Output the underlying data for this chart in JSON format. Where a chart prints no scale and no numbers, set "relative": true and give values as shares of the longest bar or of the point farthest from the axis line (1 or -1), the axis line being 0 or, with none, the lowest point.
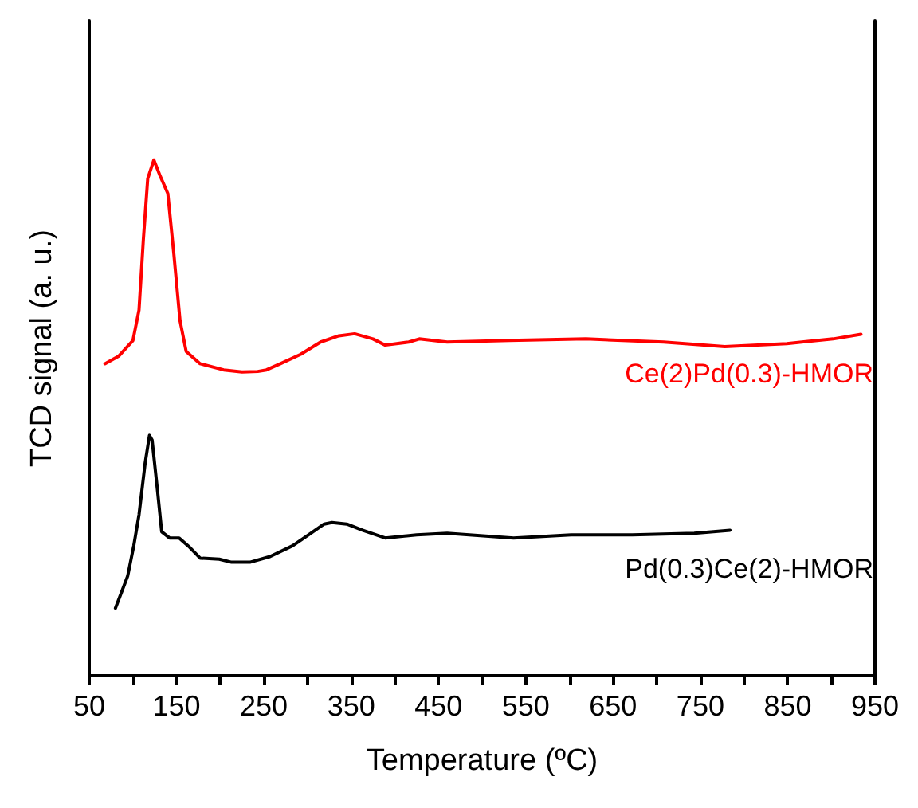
{
  "chart_data": {
    "type": "line",
    "xlabel": "Temperature (ºC)",
    "ylabel": "TCD signal (a. u.)",
    "relative": true,
    "xlim": [
      50,
      950
    ],
    "xticks": [
      50,
      {
        "value": 100,
        "label": null
      },
      150,
      {
        "value": 200,
        "label": null
      },
      250,
      {
        "value": 300,
        "label": null
      },
      350,
      {
        "value": 400,
        "label": null
      },
      450,
      {
        "value": 500,
        "label": null
      },
      550,
      {
        "value": 600,
        "label": null
      },
      650,
      {
        "value": 700,
        "label": null
      },
      750,
      {
        "value": 800,
        "label": null
      },
      850,
      {
        "value": 900,
        "label": null
      },
      950
    ],
    "grid": false,
    "legend": false,
    "marker": "none",
    "line_style": "solid",
    "series": [
      {
        "name": "Ce(2)Pd(0.3)-HMOR",
        "color": "#ff0000",
        "x": [
          68,
          84,
          100,
          107,
          112,
          117,
          124,
          131,
          140,
          147,
          154,
          161,
          177,
          204,
          225,
          243,
          253,
          269,
          292,
          315,
          336,
          354,
          375,
          389,
          416,
          428,
          460,
          531,
          619,
          708,
          778,
          849,
          902,
          934
        ],
        "values": [
          0.605,
          0.62,
          0.65,
          0.709,
          0.846,
          0.964,
          1.0,
          0.97,
          0.935,
          0.816,
          0.688,
          0.629,
          0.605,
          0.593,
          0.589,
          0.59,
          0.593,
          0.605,
          0.623,
          0.647,
          0.659,
          0.663,
          0.653,
          0.641,
          0.647,
          0.653,
          0.647,
          0.65,
          0.653,
          0.647,
          0.638,
          0.644,
          0.653,
          0.662
        ]
      },
      {
        "name": "Pd(0.3)Ce(2)-HMOR",
        "color": "#000000",
        "x": [
          80,
          94,
          101,
          107,
          114,
          119,
          122,
          128,
          133,
          142,
          153,
          165,
          177,
          199,
          213,
          234,
          257,
          283,
          301,
          319,
          328,
          345,
          363,
          389,
          425,
          460,
          536,
          602,
          672,
          743,
          784
        ],
        "values": [
          0.131,
          0.193,
          0.252,
          0.312,
          0.412,
          0.466,
          0.457,
          0.362,
          0.279,
          0.267,
          0.267,
          0.249,
          0.228,
          0.226,
          0.22,
          0.22,
          0.231,
          0.252,
          0.273,
          0.294,
          0.297,
          0.294,
          0.282,
          0.267,
          0.273,
          0.276,
          0.267,
          0.273,
          0.273,
          0.276,
          0.282
        ]
      }
    ]
  }
}
